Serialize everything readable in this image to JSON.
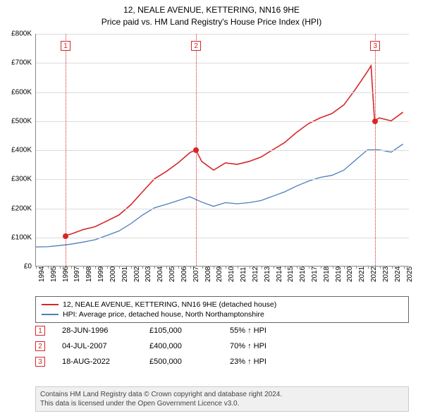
{
  "title": {
    "line1": "12, NEALE AVENUE, KETTERING, NN16 9HE",
    "line2": "Price paid vs. HM Land Registry's House Price Index (HPI)",
    "fontsize": 12
  },
  "chart": {
    "type": "line",
    "background_color": "#ffffff",
    "grid_color": "#dcdcdc",
    "axis_color": "#888888",
    "ylim": [
      0,
      800000
    ],
    "ytick_step": 100000,
    "ylabels": [
      "£0",
      "£100K",
      "£200K",
      "£300K",
      "£400K",
      "£500K",
      "£600K",
      "£700K",
      "£800K"
    ],
    "xlim": [
      1994,
      2025.5
    ],
    "xticks": [
      1994,
      1995,
      1996,
      1997,
      1998,
      1999,
      2000,
      2001,
      2002,
      2003,
      2004,
      2005,
      2006,
      2007,
      2008,
      2009,
      2010,
      2011,
      2012,
      2013,
      2014,
      2015,
      2016,
      2017,
      2018,
      2019,
      2020,
      2021,
      2022,
      2023,
      2024,
      2025
    ],
    "series": [
      {
        "name": "price_paid",
        "color": "#d62728",
        "width": 1.6,
        "points": [
          [
            1996.5,
            105000
          ],
          [
            1997,
            110000
          ],
          [
            1998,
            125000
          ],
          [
            1999,
            135000
          ],
          [
            2000,
            155000
          ],
          [
            2001,
            175000
          ],
          [
            2002,
            210000
          ],
          [
            2003,
            255000
          ],
          [
            2004,
            300000
          ],
          [
            2005,
            325000
          ],
          [
            2006,
            355000
          ],
          [
            2007,
            390000
          ],
          [
            2007.5,
            400000
          ],
          [
            2008,
            360000
          ],
          [
            2009,
            330000
          ],
          [
            2010,
            355000
          ],
          [
            2011,
            350000
          ],
          [
            2012,
            360000
          ],
          [
            2013,
            375000
          ],
          [
            2014,
            400000
          ],
          [
            2015,
            425000
          ],
          [
            2016,
            460000
          ],
          [
            2017,
            490000
          ],
          [
            2018,
            510000
          ],
          [
            2019,
            525000
          ],
          [
            2020,
            555000
          ],
          [
            2021,
            610000
          ],
          [
            2022,
            670000
          ],
          [
            2022.3,
            690000
          ],
          [
            2022.6,
            500000
          ],
          [
            2023,
            510000
          ],
          [
            2024,
            500000
          ],
          [
            2025,
            530000
          ]
        ]
      },
      {
        "name": "hpi",
        "color": "#4a7ebb",
        "width": 1.3,
        "points": [
          [
            1994,
            65000
          ],
          [
            1995,
            66000
          ],
          [
            1996,
            70000
          ],
          [
            1997,
            75000
          ],
          [
            1998,
            82000
          ],
          [
            1999,
            90000
          ],
          [
            2000,
            105000
          ],
          [
            2001,
            120000
          ],
          [
            2002,
            145000
          ],
          [
            2003,
            175000
          ],
          [
            2004,
            200000
          ],
          [
            2005,
            212000
          ],
          [
            2006,
            225000
          ],
          [
            2007,
            238000
          ],
          [
            2008,
            220000
          ],
          [
            2009,
            205000
          ],
          [
            2010,
            218000
          ],
          [
            2011,
            214000
          ],
          [
            2012,
            218000
          ],
          [
            2013,
            225000
          ],
          [
            2014,
            240000
          ],
          [
            2015,
            255000
          ],
          [
            2016,
            275000
          ],
          [
            2017,
            292000
          ],
          [
            2018,
            305000
          ],
          [
            2019,
            312000
          ],
          [
            2020,
            330000
          ],
          [
            2021,
            365000
          ],
          [
            2022,
            400000
          ],
          [
            2023,
            400000
          ],
          [
            2024,
            392000
          ],
          [
            2025,
            420000
          ]
        ]
      }
    ],
    "markers": [
      {
        "id": "1",
        "x": 1996.5,
        "y": 105000,
        "color": "#d62728"
      },
      {
        "id": "2",
        "x": 2007.5,
        "y": 400000,
        "color": "#d62728"
      },
      {
        "id": "3",
        "x": 2022.6,
        "y": 500000,
        "color": "#d62728"
      }
    ]
  },
  "legend": {
    "items": [
      {
        "label": "12, NEALE AVENUE, KETTERING, NN16 9HE (detached house)",
        "color": "#d62728"
      },
      {
        "label": "HPI: Average price, detached house, North Northamptonshire",
        "color": "#4a7ebb"
      }
    ]
  },
  "events": [
    {
      "id": "1",
      "date": "28-JUN-1996",
      "price": "£105,000",
      "delta": "55% ↑ HPI"
    },
    {
      "id": "2",
      "date": "04-JUL-2007",
      "price": "£400,000",
      "delta": "70% ↑ HPI"
    },
    {
      "id": "3",
      "date": "18-AUG-2022",
      "price": "£500,000",
      "delta": "23% ↑ HPI"
    }
  ],
  "footer": {
    "line1": "Contains HM Land Registry data © Crown copyright and database right 2024.",
    "line2": "This data is licensed under the Open Government Licence v3.0."
  }
}
